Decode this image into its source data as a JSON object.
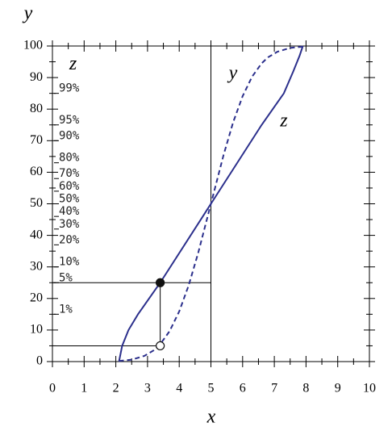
{
  "chart_data": {
    "type": "line",
    "x_label": "x",
    "y_label": "y",
    "xlim": [
      0,
      10
    ],
    "ylim": [
      0,
      100
    ],
    "xticks": [
      0,
      1,
      2,
      3,
      4,
      5,
      6,
      7,
      8,
      9,
      10
    ],
    "yticks": [
      0,
      10,
      20,
      30,
      40,
      50,
      60,
      70,
      80,
      90,
      100
    ],
    "xminorticks": [
      0.5,
      1.5,
      2.5,
      3.5,
      4.5,
      5.5,
      6.5,
      7.5,
      8.5,
      9.5
    ],
    "yminorticks": [
      5,
      15,
      25,
      35,
      45,
      55,
      65,
      75,
      85,
      95
    ],
    "series": [
      {
        "name": "y",
        "color": "#2b2f8c",
        "dashed": true,
        "x": [
          2.1,
          2.5,
          2.9,
          3.2,
          3.4,
          3.7,
          4.0,
          4.3,
          4.6,
          5.0,
          5.4,
          5.7,
          6.0,
          6.3,
          6.6,
          6.8,
          7.1,
          7.5,
          7.9
        ],
        "values": [
          0.2,
          0.6,
          1.8,
          3.6,
          5.5,
          9.7,
          15.9,
          24.2,
          34.5,
          50,
          65.5,
          75.8,
          84.1,
          90.3,
          94.5,
          96.4,
          98.2,
          99.4,
          99.8
        ]
      },
      {
        "name": "z",
        "color": "#2b2f8c",
        "dashed": false,
        "x": [
          2.1,
          2.2,
          2.4,
          2.7,
          3.4,
          5.0,
          6.6,
          7.3,
          7.6,
          7.8,
          7.9
        ],
        "values": [
          0,
          5,
          10,
          15,
          25,
          50,
          75,
          85,
          92,
          97,
          100
        ]
      }
    ],
    "guides": [
      {
        "x": [
          0,
          5
        ],
        "y": [
          25,
          25
        ]
      },
      {
        "x": [
          0,
          3.4
        ],
        "y": [
          5,
          5
        ]
      },
      {
        "x": [
          3.4,
          3.4
        ],
        "y": [
          5,
          25
        ]
      },
      {
        "x": [
          5,
          5
        ],
        "y": [
          0,
          100
        ]
      }
    ],
    "points": [
      {
        "x": 3.4,
        "y": 25,
        "filled": true
      },
      {
        "x": 3.4,
        "y": 5,
        "filled": false
      }
    ],
    "annotations": [
      {
        "text": "z",
        "x": 0.65,
        "y": 94
      },
      {
        "text": "y",
        "x": 5.7,
        "y": 91
      },
      {
        "text": "z",
        "x": 7.3,
        "y": 76
      }
    ],
    "percent_scale": {
      "labels": [
        "99%",
        "95%",
        "90%",
        "80%",
        "70%",
        "60%",
        "50%",
        "40%",
        "30%",
        "20%",
        "10%",
        "5%",
        "1%"
      ],
      "positions": [
        85,
        75,
        70,
        63,
        58,
        54,
        50,
        46,
        42,
        37,
        30,
        25,
        15
      ]
    }
  }
}
